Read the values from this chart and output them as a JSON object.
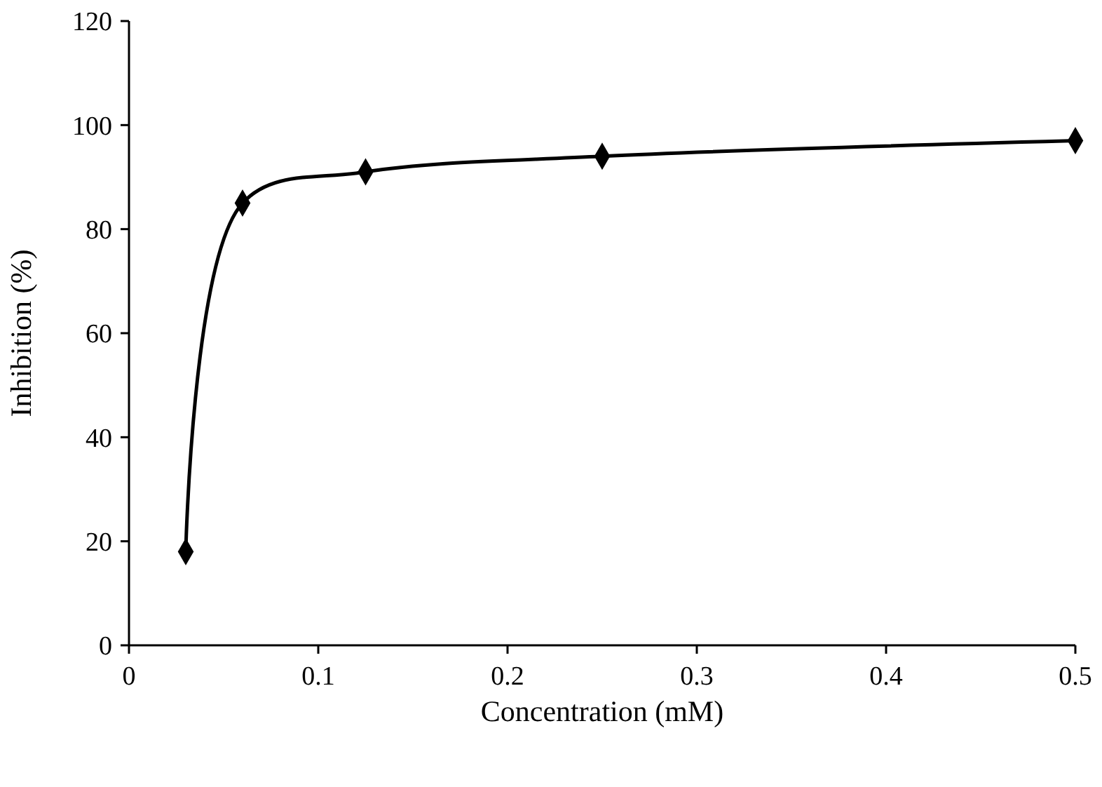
{
  "chart_data": {
    "type": "line",
    "xlabel": "Concentration (mM)",
    "ylabel": "Inhibition (%)",
    "x": [
      0.03,
      0.06,
      0.125,
      0.25,
      0.5
    ],
    "series": [
      {
        "color": "#000000",
        "values": [
          18,
          85,
          91,
          94,
          97
        ]
      }
    ],
    "xlim": [
      0,
      0.5
    ],
    "xticks": [
      0,
      0.1,
      0.2,
      0.3,
      0.4,
      0.5
    ],
    "ylim": [
      0,
      120
    ],
    "yticks": [
      0,
      20,
      40,
      60,
      80,
      100,
      120
    ],
    "grid": false,
    "marker": "diamond",
    "line_style": "solid"
  }
}
